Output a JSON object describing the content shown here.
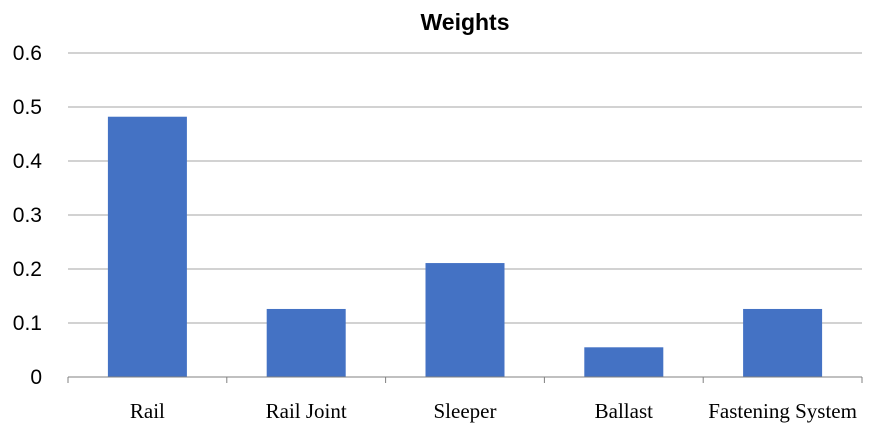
{
  "chart_data": {
    "type": "bar",
    "title": "Weights",
    "xlabel": "",
    "ylabel": "",
    "categories": [
      "Rail",
      "Rail Joint",
      "Sleeper",
      "Ballast",
      "Fastening System"
    ],
    "values": [
      0.482,
      0.126,
      0.211,
      0.055,
      0.126
    ],
    "ylim": [
      0,
      0.6
    ],
    "yticks": [
      "0",
      "0.1",
      "0.2",
      "0.3",
      "0.4",
      "0.5",
      "0.6"
    ],
    "grid": true,
    "legend": "none",
    "colors": {
      "bar": "#4472C4",
      "grid": "#A6A6A6",
      "axis": "#808080"
    }
  }
}
